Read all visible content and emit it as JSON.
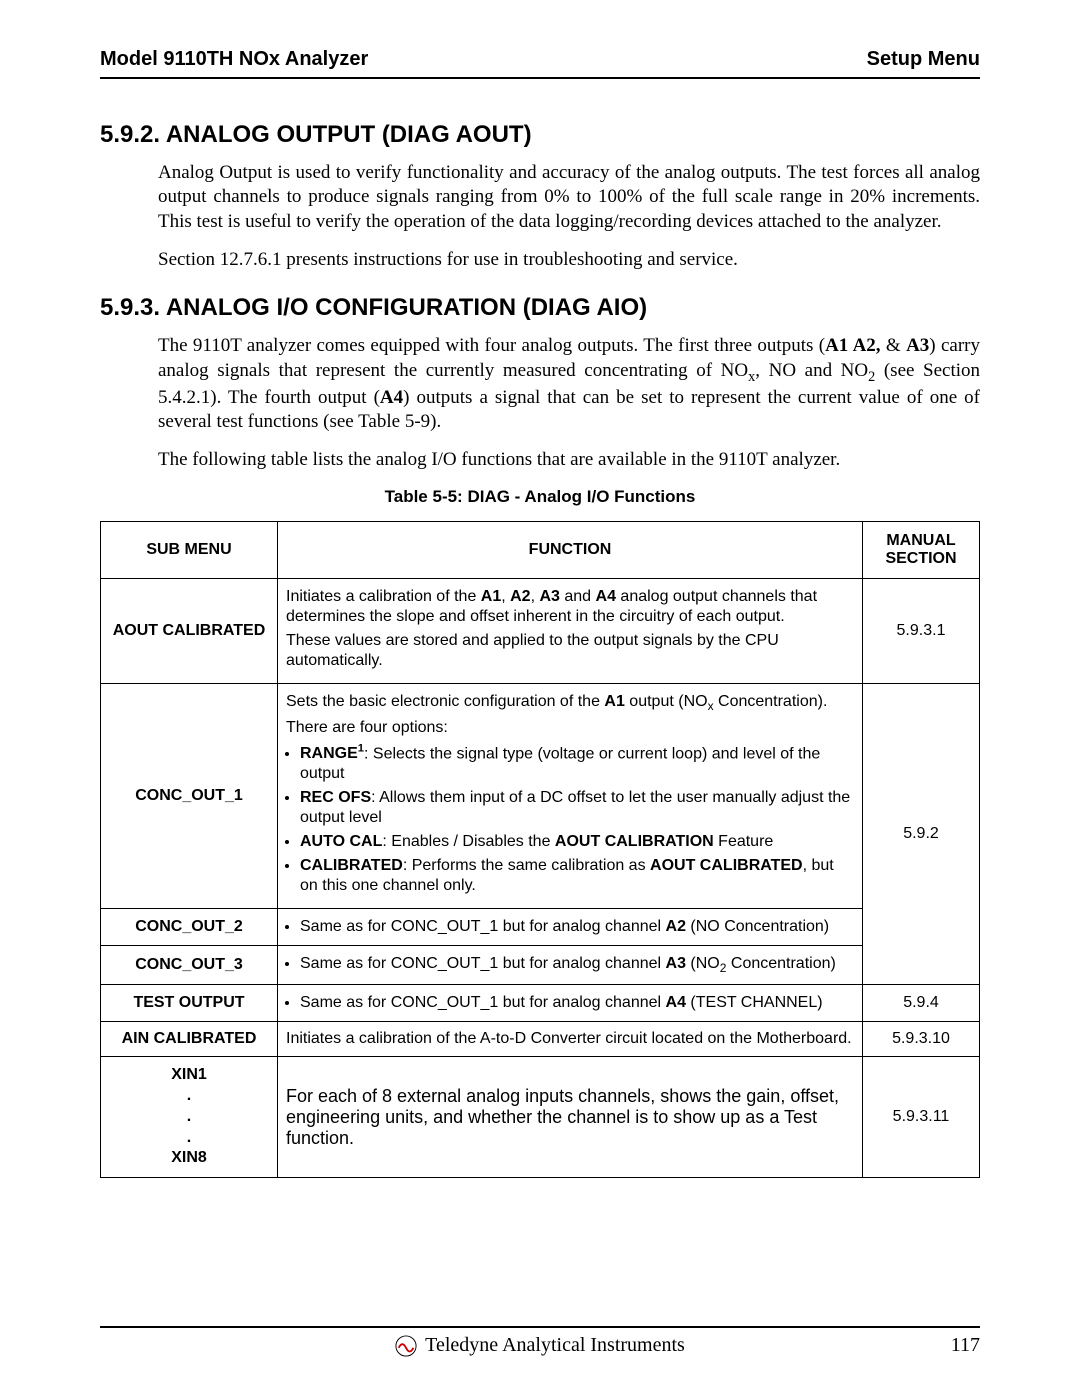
{
  "header": {
    "left": "Model 9110TH NOx Analyzer",
    "right": "Setup Menu"
  },
  "section_592": {
    "title": "5.9.2. ANALOG OUTPUT (DIAG AOUT)",
    "para1": "Analog Output is used to verify functionality and accuracy of the analog outputs. The test forces all analog output channels to produce signals ranging from 0% to 100% of the full scale range in 20% increments. This test is useful to verify the operation of the data logging/recording devices attached to the analyzer.",
    "para2": "Section 12.7.6.1 presents instructions for use in troubleshooting and service."
  },
  "section_593": {
    "title": "5.9.3. ANALOG I/O CONFIGURATION (DIAG AIO)",
    "para1_html": "The 9110T analyzer comes equipped with four analog outputs.  The first three outputs (<b>A1 A2,</b> &amp; <b>A3</b>) carry analog signals that represent the currently measured concentrating of NO<sub>x</sub>, NO and NO<sub>2</sub> (see Section 5.4.2.1).  The fourth output (<b>A4</b>) outputs a signal that can be set to represent the current value of one of several test functions (see Table 5-9).",
    "para2": "The following table lists the analog I/O functions that are available in the 9110T analyzer."
  },
  "table": {
    "caption": "Table 5-5:   DIAG - Analog I/O Functions",
    "head": {
      "c1": "SUB MENU",
      "c2": "FUNCTION",
      "c3": "MANUAL SECTION"
    },
    "rows": {
      "aout_calibrated": {
        "sub": "AOUT CALIBRATED",
        "fn_p1_html": "Initiates a calibration of the <b>A1</b>, <b>A2</b>, <b>A3</b> and <b>A4</b> analog output channels that determines the slope and offset inherent in the circuitry of each output.",
        "fn_p2": "These values are stored and applied to the output signals by the CPU automatically.",
        "sec": "5.9.3.1"
      },
      "conc_out_1": {
        "sub": "CONC_OUT_1",
        "fn_p1_html": "Sets the basic electronic configuration of the <b>A1</b> output (NO<sub>x</sub> Concentration).",
        "fn_p2": "There are four options:",
        "b1_html": "<b>RANGE<sup>1</sup></b>:  Selects the signal type (voltage or current loop) and level of the output",
        "b2_html": "<b>REC OFS</b>: Allows them input of a DC offset to let the user manually adjust the output level",
        "b3_html": "<b>AUTO CAL</b>: Enables / Disables the <b>AOUT CALIBRATION</b> Feature",
        "b4_html": "<b>CALIBRATED</b>: Performs the same calibration as <b>AOUT CALIBRATED</b>, but on this one channel only.",
        "sec": "5.9.2"
      },
      "conc_out_2": {
        "sub": "CONC_OUT_2",
        "fn_html": "Same as for CONC_OUT_1 but for analog channel <b>A2</b> (NO Concentration)"
      },
      "conc_out_3": {
        "sub": "CONC_OUT_3",
        "fn_html": "Same as for CONC_OUT_1 but for analog channel <b>A3</b> (NO<sub>2</sub>  Concentration)"
      },
      "test_output": {
        "sub": "TEST OUTPUT",
        "fn_html": "Same as for CONC_OUT_1 but for analog channel <b>A4</b> (TEST CHANNEL)",
        "sec": "5.9.4"
      },
      "ain_calibrated": {
        "sub": "AIN CALIBRATED",
        "fn": "Initiates a calibration of the A-to-D Converter circuit located on the Motherboard.",
        "sec": "5.9.3.10"
      },
      "xin": {
        "sub_l1": "XIN1",
        "sub_l2": ".",
        "sub_l3": ".",
        "sub_l4": ".",
        "sub_l5": "XIN8",
        "fn": "For each of 8 external analog inputs channels, shows the gain, offset, engineering units, and whether the channel is to show up as a Test function.",
        "sec": "5.9.3.11"
      }
    }
  },
  "footer": {
    "company": "Teledyne Analytical Instruments",
    "page": "117"
  }
}
